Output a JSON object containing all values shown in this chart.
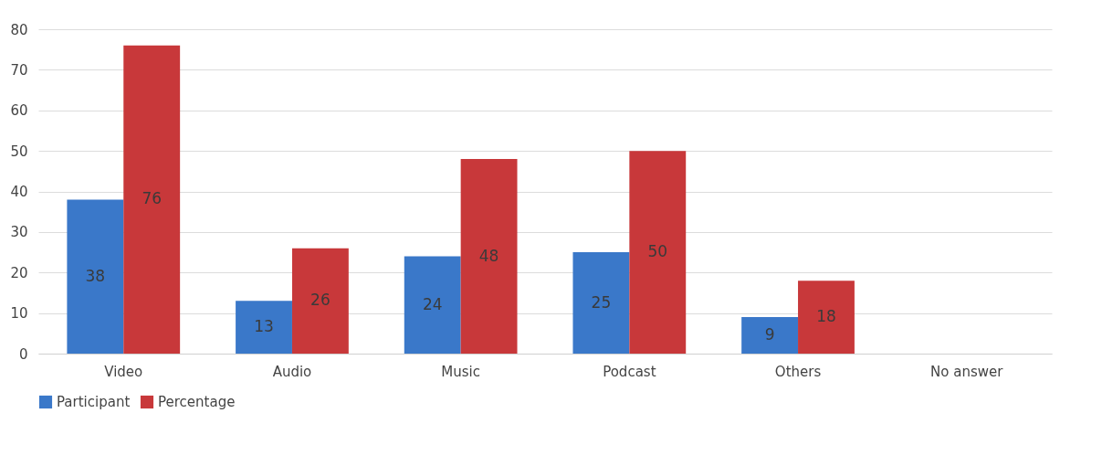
{
  "chart_data": {
    "type": "bar",
    "categories": [
      "Video",
      "Audio",
      "Music",
      "Podcast",
      "Others",
      "No answer"
    ],
    "series": [
      {
        "name": "Participant",
        "color": "#3a78c9",
        "values": [
          38,
          13,
          24,
          25,
          9,
          null
        ]
      },
      {
        "name": "Percentage",
        "color": "#c8383a",
        "values": [
          76,
          26,
          48,
          50,
          18,
          null
        ]
      }
    ],
    "ylim": [
      0,
      80
    ],
    "yticks": [
      0,
      10,
      20,
      30,
      40,
      50,
      60,
      70,
      80
    ],
    "grid": "y",
    "legend": "bottom",
    "data_labels": true
  }
}
